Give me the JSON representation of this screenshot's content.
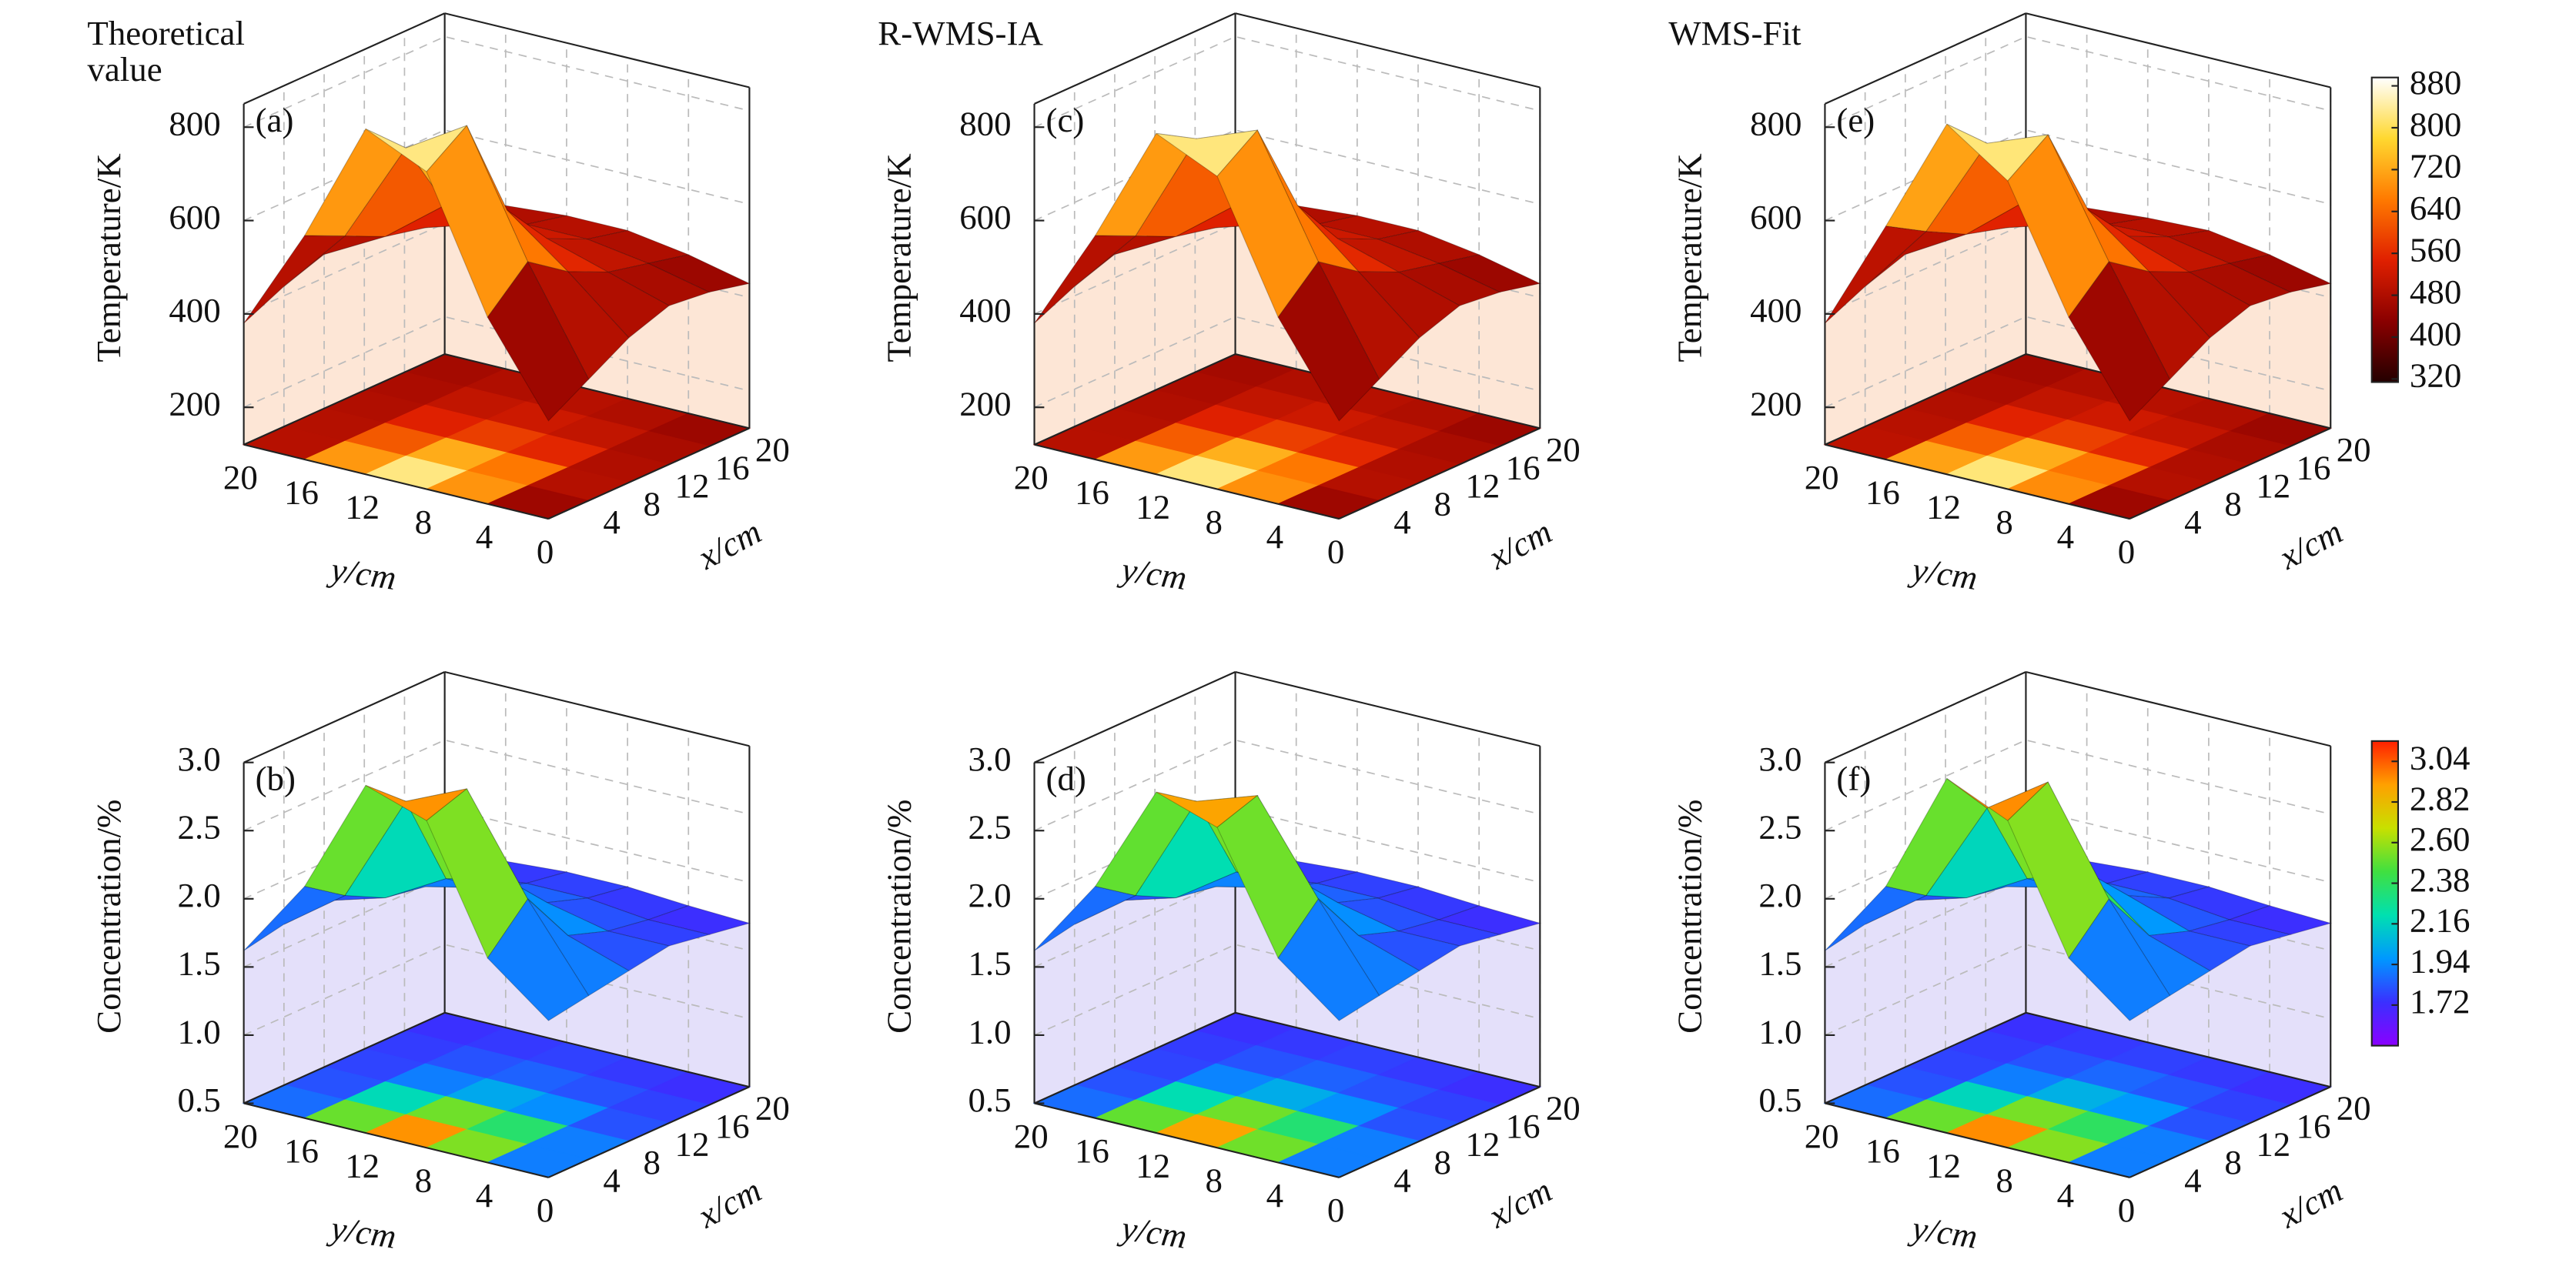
{
  "chart_data": [
    {
      "type": "surface",
      "title": "Theoretical value",
      "panel_label": "(a)",
      "zlabel": "Temperature/K",
      "xlabel": "x/cm",
      "ylabel": "y/cm",
      "x": [
        0,
        4,
        8,
        12,
        16,
        20
      ],
      "y": [
        0,
        4,
        8,
        12,
        16,
        20
      ],
      "z": [
        [
          330,
          380,
          430,
          460,
          450,
          430
        ],
        [
          520,
          600,
          540,
          500,
          480,
          460
        ],
        [
          800,
          860,
          640,
          540,
          500,
          480
        ],
        [
          860,
          780,
          620,
          540,
          500,
          480
        ],
        [
          600,
          560,
          520,
          500,
          480,
          470
        ],
        [
          380,
          420,
          450,
          460,
          460,
          450
        ]
      ],
      "zlim": [
        120,
        850
      ],
      "zticks": [
        200,
        400,
        600,
        800
      ],
      "xlim": [
        0,
        20
      ],
      "xticks": [
        4,
        8,
        12,
        16,
        20
      ],
      "ylim": [
        0,
        20
      ],
      "yticks": [
        20,
        16,
        12,
        8,
        4,
        0
      ],
      "clim": [
        314,
        896
      ],
      "colormap": [
        "#240000",
        "#8a0000",
        "#e02000",
        "#ff7a00",
        "#ffd830",
        "#ffffff"
      ],
      "wall_color": "#fde6d6",
      "grid": true
    },
    {
      "type": "surface",
      "panel_label": "(b)",
      "zlabel": "Concentration/%",
      "xlabel": "x/cm",
      "ylabel": "y/cm",
      "x": [
        0,
        4,
        8,
        12,
        16,
        20
      ],
      "y": [
        0,
        4,
        8,
        12,
        16,
        20
      ],
      "z": [
        [
          1.65,
          1.7,
          1.75,
          1.8,
          1.75,
          1.7
        ],
        [
          2.0,
          2.3,
          1.9,
          1.8,
          1.75,
          1.72
        ],
        [
          2.9,
          3.0,
          2.2,
          1.9,
          1.8,
          1.75
        ],
        [
          3.05,
          2.8,
          2.1,
          1.9,
          1.8,
          1.75
        ],
        [
          2.2,
          2.0,
          1.85,
          1.8,
          1.75,
          1.72
        ],
        [
          1.62,
          1.68,
          1.72,
          1.75,
          1.75,
          1.72
        ]
      ],
      "zlim": [
        0.5,
        3.0
      ],
      "zticks": [
        0.5,
        {
          "value": 1,
          "label": "1.0"
        },
        1.5,
        {
          "value": 2,
          "label": "2.0"
        },
        2.5,
        {
          "value": 3,
          "label": "3.0"
        }
      ],
      "xlim": [
        0,
        20
      ],
      "xticks": [
        4,
        8,
        12,
        16,
        20
      ],
      "ylim": [
        0,
        20
      ],
      "yticks": [
        20,
        16,
        12,
        8,
        4,
        0
      ],
      "clim": [
        1.5,
        3.15
      ],
      "colormap": [
        "#8a00ff",
        "#3a30ff",
        "#0098ff",
        "#00e0b0",
        "#40e040",
        "#c8e000",
        "#ffa000",
        "#ff2000"
      ],
      "wall_color": "#e4e0fa",
      "grid": true
    },
    {
      "type": "surface",
      "title": "R-WMS-IA",
      "panel_label": "(c)",
      "zlabel": "Temperature/K",
      "xlabel": "x/cm",
      "ylabel": "y/cm",
      "x": [
        0,
        4,
        8,
        12,
        16,
        20
      ],
      "y": [
        0,
        4,
        8,
        12,
        16,
        20
      ],
      "z": [
        [
          330,
          380,
          430,
          460,
          450,
          430
        ],
        [
          520,
          600,
          540,
          500,
          480,
          460
        ],
        [
          790,
          850,
          650,
          540,
          500,
          480
        ],
        [
          850,
          800,
          620,
          540,
          500,
          480
        ],
        [
          600,
          560,
          520,
          500,
          480,
          470
        ],
        [
          380,
          420,
          450,
          460,
          460,
          450
        ]
      ],
      "zlim": [
        120,
        850
      ],
      "zticks": [
        200,
        400,
        600,
        800
      ],
      "xlim": [
        0,
        20
      ],
      "xticks": [
        4,
        8,
        12,
        16,
        20
      ],
      "ylim": [
        0,
        20
      ],
      "yticks": [
        20,
        16,
        12,
        8,
        4,
        0
      ],
      "clim": [
        314,
        896
      ],
      "colormap": [
        "#240000",
        "#8a0000",
        "#e02000",
        "#ff7a00",
        "#ffd830",
        "#ffffff"
      ],
      "wall_color": "#fde6d6",
      "grid": true
    },
    {
      "type": "surface",
      "panel_label": "(d)",
      "zlabel": "Concentration/%",
      "xlabel": "x/cm",
      "ylabel": "y/cm",
      "x": [
        0,
        4,
        8,
        12,
        16,
        20
      ],
      "y": [
        0,
        4,
        8,
        12,
        16,
        20
      ],
      "z": [
        [
          1.65,
          1.7,
          1.75,
          1.8,
          1.75,
          1.7
        ],
        [
          2.0,
          2.3,
          1.9,
          1.8,
          1.75,
          1.72
        ],
        [
          2.85,
          2.95,
          2.2,
          1.9,
          1.8,
          1.75
        ],
        [
          3.0,
          2.8,
          2.15,
          1.9,
          1.8,
          1.75
        ],
        [
          2.2,
          2.0,
          1.85,
          1.8,
          1.75,
          1.72
        ],
        [
          1.62,
          1.68,
          1.72,
          1.75,
          1.75,
          1.72
        ]
      ],
      "zlim": [
        0.5,
        3.0
      ],
      "zticks": [
        0.5,
        {
          "value": 1,
          "label": "1.0"
        },
        1.5,
        {
          "value": 2,
          "label": "2.0"
        },
        2.5,
        {
          "value": 3,
          "label": "3.0"
        }
      ],
      "xlim": [
        0,
        20
      ],
      "xticks": [
        4,
        8,
        12,
        16,
        20
      ],
      "ylim": [
        0,
        20
      ],
      "yticks": [
        20,
        16,
        12,
        8,
        4,
        0
      ],
      "clim": [
        1.5,
        3.15
      ],
      "colormap": [
        "#8a00ff",
        "#3a30ff",
        "#0098ff",
        "#00e0b0",
        "#40e040",
        "#c8e000",
        "#ffa000",
        "#ff2000"
      ],
      "wall_color": "#e4e0fa",
      "grid": true
    },
    {
      "type": "surface",
      "title": "WMS-Fit",
      "panel_label": "(e)",
      "zlabel": "Temperature/K",
      "xlabel": "x/cm",
      "ylabel": "y/cm",
      "x": [
        0,
        4,
        8,
        12,
        16,
        20
      ],
      "y": [
        0,
        4,
        8,
        12,
        16,
        20
      ],
      "z": [
        [
          330,
          380,
          430,
          460,
          450,
          430
        ],
        [
          520,
          600,
          540,
          500,
          480,
          460
        ],
        [
          780,
          840,
          640,
          545,
          505,
          480
        ],
        [
          870,
          790,
          630,
          540,
          500,
          475
        ],
        [
          620,
          570,
          525,
          500,
          480,
          465
        ],
        [
          380,
          420,
          450,
          460,
          460,
          450
        ]
      ],
      "zlim": [
        120,
        850
      ],
      "zticks": [
        200,
        400,
        600,
        800
      ],
      "xlim": [
        0,
        20
      ],
      "xticks": [
        4,
        8,
        12,
        16,
        20
      ],
      "ylim": [
        0,
        20
      ],
      "yticks": [
        20,
        16,
        12,
        8,
        4,
        0
      ],
      "clim": [
        314,
        896
      ],
      "colormap": [
        "#240000",
        "#8a0000",
        "#e02000",
        "#ff7a00",
        "#ffd830",
        "#ffffff"
      ],
      "wall_color": "#fde6d6",
      "grid": true,
      "colorbar": {
        "ticks": [
          880,
          800,
          720,
          640,
          560,
          480,
          400,
          320
        ]
      }
    },
    {
      "type": "surface",
      "panel_label": "(f)",
      "zlabel": "Concentration/%",
      "xlabel": "x/cm",
      "ylabel": "y/cm",
      "x": [
        0,
        4,
        8,
        12,
        16,
        20
      ],
      "y": [
        0,
        4,
        8,
        12,
        16,
        20
      ],
      "z": [
        [
          1.65,
          1.7,
          1.75,
          1.8,
          1.75,
          1.7
        ],
        [
          2.0,
          2.3,
          1.9,
          1.8,
          1.75,
          1.72
        ],
        [
          2.9,
          3.05,
          2.25,
          1.95,
          1.8,
          1.75
        ],
        [
          3.1,
          2.75,
          2.1,
          1.9,
          1.8,
          1.75
        ],
        [
          2.2,
          2.0,
          1.85,
          1.8,
          1.75,
          1.72
        ],
        [
          1.62,
          1.68,
          1.72,
          1.75,
          1.75,
          1.72
        ]
      ],
      "zlim": [
        0.5,
        3.0
      ],
      "zticks": [
        0.5,
        {
          "value": 1,
          "label": "1.0"
        },
        1.5,
        {
          "value": 2,
          "label": "2.0"
        },
        2.5,
        {
          "value": 3,
          "label": "3.0"
        }
      ],
      "xlim": [
        0,
        20
      ],
      "xticks": [
        4,
        8,
        12,
        16,
        20
      ],
      "ylim": [
        0,
        20
      ],
      "yticks": [
        20,
        16,
        12,
        8,
        4,
        0
      ],
      "clim": [
        1.5,
        3.15
      ],
      "colormap": [
        "#8a00ff",
        "#3a30ff",
        "#0098ff",
        "#00e0b0",
        "#40e040",
        "#c8e000",
        "#ffa000",
        "#ff2000"
      ],
      "wall_color": "#e4e0fa",
      "grid": true,
      "colorbar": {
        "ticks": [
          3.04,
          2.82,
          {
            "value": 2.6,
            "label": "2.60"
          },
          2.38,
          2.16,
          1.94,
          1.72
        ]
      }
    }
  ]
}
